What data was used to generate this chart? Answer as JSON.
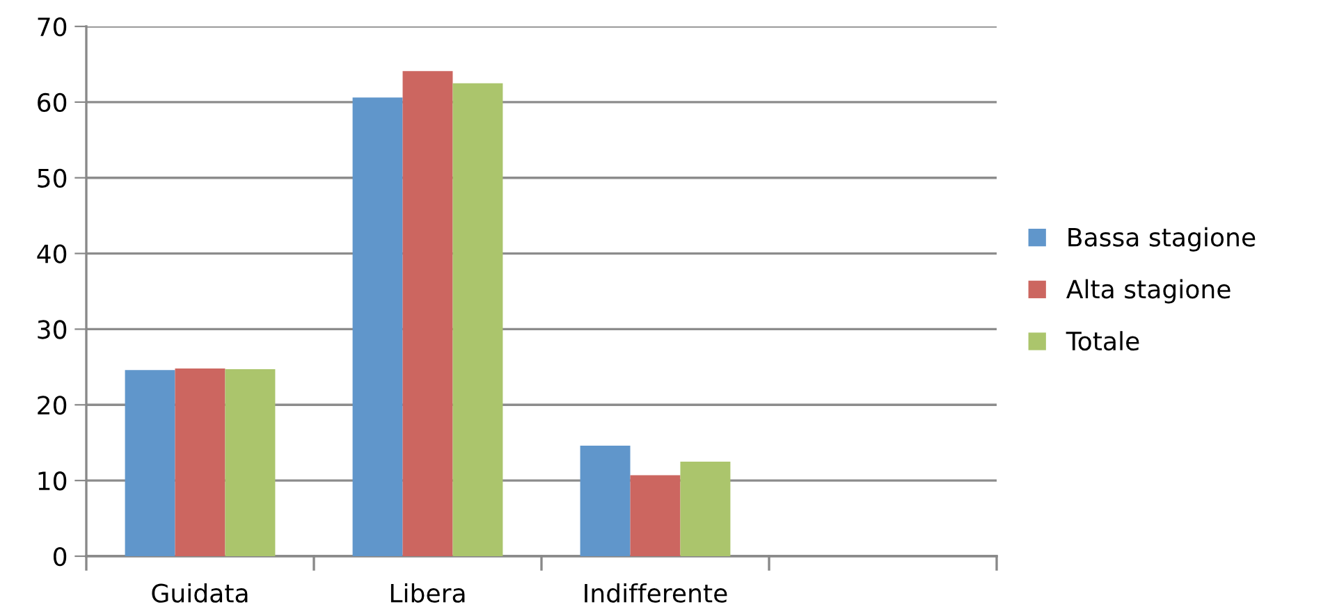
{
  "chart_data": {
    "type": "bar",
    "categories": [
      "Guidata",
      "Libera",
      "Indifferente",
      null
    ],
    "series": [
      {
        "name": "Bassa stagione",
        "color": "#6096cb",
        "values": [
          24.6,
          60.6,
          14.6,
          null
        ]
      },
      {
        "name": "Alta stagione",
        "color": "#cc6660",
        "values": [
          24.8,
          64.1,
          10.7,
          null
        ]
      },
      {
        "name": "Totale",
        "color": "#abc56c",
        "values": [
          24.7,
          62.5,
          12.5,
          null
        ]
      }
    ],
    "ylim": [
      0,
      70
    ],
    "yticks": [
      0,
      10,
      20,
      30,
      40,
      50,
      60,
      70
    ],
    "grid": "y",
    "legend": "right"
  }
}
